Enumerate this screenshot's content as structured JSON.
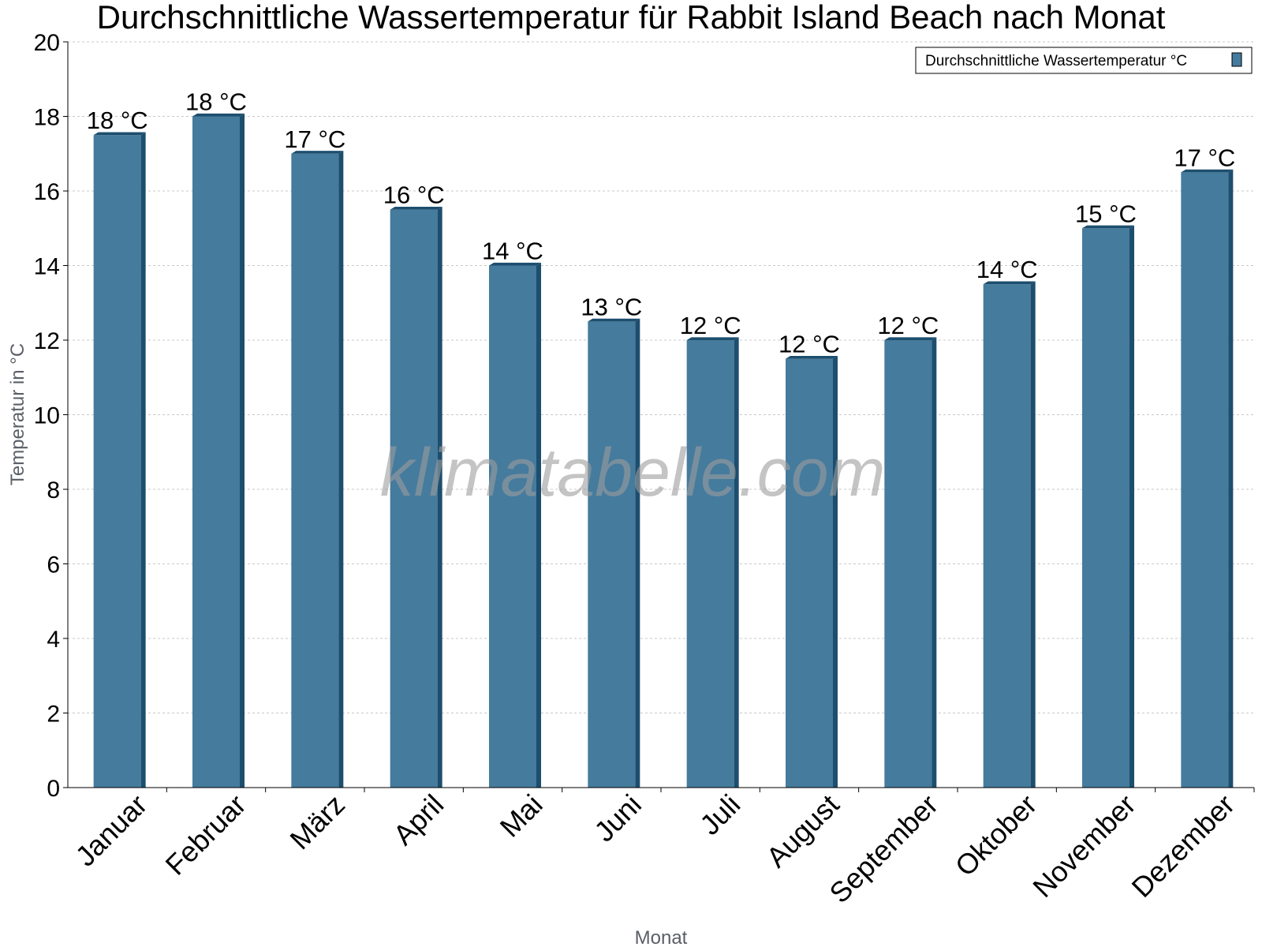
{
  "chart_data": {
    "type": "bar",
    "title": "Durchschnittliche Wassertemperatur für Rabbit Island Beach nach Monat",
    "xlabel": "Monat",
    "ylabel": "Temperatur in °C",
    "categories": [
      "Januar",
      "Februar",
      "März",
      "April",
      "Mai",
      "Juni",
      "Juli",
      "August",
      "September",
      "Oktober",
      "November",
      "Dezember"
    ],
    "series": [
      {
        "name": "Durchschnittliche Wassertemperatur °C",
        "values": [
          17.5,
          18.0,
          17.0,
          15.5,
          14.0,
          12.5,
          12.0,
          11.5,
          12.0,
          13.5,
          15.0,
          16.5
        ],
        "data_labels": [
          "18 °C",
          "18 °C",
          "17 °C",
          "16 °C",
          "14 °C",
          "13 °C",
          "12 °C",
          "12 °C",
          "12 °C",
          "14 °C",
          "15 °C",
          "17 °C"
        ]
      }
    ],
    "ylim": [
      0,
      20
    ],
    "yticks": [
      0,
      2,
      4,
      6,
      8,
      10,
      12,
      14,
      16,
      18,
      20
    ],
    "grid": true,
    "legend_position": "top-right",
    "colors": {
      "bar": "#457b9d",
      "bar_dark": "#1d4e6e",
      "grid": "#c8c8c8"
    }
  },
  "watermark": "klimatabelle.com"
}
